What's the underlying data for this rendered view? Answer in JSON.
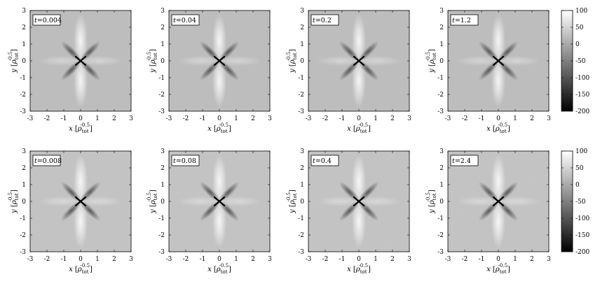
{
  "chart_data": [
    {
      "type": "heatmap",
      "label": "t=0.004",
      "t_symbol": "t",
      "t_value": "=0.004",
      "noise": false,
      "xlim": [
        -3,
        3
      ],
      "ylim": [
        -3,
        3
      ],
      "x_ticks": [
        "-3",
        "-2",
        "-1",
        "0",
        "1",
        "2",
        "3"
      ],
      "y_ticks": [
        "3",
        "2",
        "1",
        "0",
        "-1",
        "-2",
        "-3"
      ],
      "xlabel": {
        "var": "x",
        "unit": "ρ",
        "sub": "tot",
        "sup": "-0.5"
      },
      "ylabel": {
        "var": "y",
        "unit": "ρ",
        "sub": "tot",
        "sup": "-0.5"
      }
    },
    {
      "type": "heatmap",
      "label": "t=0.04",
      "t_symbol": "t",
      "t_value": "=0.04",
      "noise": false,
      "xlim": [
        -3,
        3
      ],
      "ylim": [
        -3,
        3
      ],
      "x_ticks": [
        "-3",
        "-2",
        "-1",
        "0",
        "1",
        "2",
        "3"
      ],
      "y_ticks": [
        "3",
        "2",
        "1",
        "0",
        "-1",
        "-2",
        "-3"
      ],
      "xlabel": {
        "var": "x",
        "unit": "ρ",
        "sub": "tot",
        "sup": "-0.5"
      },
      "ylabel": {
        "var": "y",
        "unit": "ρ",
        "sub": "tot",
        "sup": "-0.5"
      }
    },
    {
      "type": "heatmap",
      "label": "t=0.2",
      "t_symbol": "t",
      "t_value": "=0.2",
      "noise": false,
      "xlim": [
        -3,
        3
      ],
      "ylim": [
        -3,
        3
      ],
      "x_ticks": [
        "-3",
        "-2",
        "-1",
        "0",
        "1",
        "2",
        "3"
      ],
      "y_ticks": [
        "3",
        "2",
        "1",
        "0",
        "-1",
        "-2",
        "-3"
      ],
      "xlabel": {
        "var": "x",
        "unit": "ρ",
        "sub": "tot",
        "sup": "-0.5"
      },
      "ylabel": {
        "var": "y",
        "unit": "ρ",
        "sub": "tot",
        "sup": "-0.5"
      }
    },
    {
      "type": "heatmap",
      "label": "t=1.2",
      "t_symbol": "t",
      "t_value": "=1.2",
      "noise": false,
      "xlim": [
        -3,
        3
      ],
      "ylim": [
        -3,
        3
      ],
      "x_ticks": [
        "-3",
        "-2",
        "-1",
        "0",
        "1",
        "2",
        "3"
      ],
      "y_ticks": [
        "3",
        "2",
        "1",
        "0",
        "-1",
        "-2",
        "-3"
      ],
      "xlabel": {
        "var": "x",
        "unit": "ρ",
        "sub": "tot",
        "sup": "-0.5"
      },
      "ylabel": {
        "var": "y",
        "unit": "ρ",
        "sub": "tot",
        "sup": "-0.5"
      }
    },
    {
      "type": "heatmap",
      "label": "t=0.008",
      "t_symbol": "t",
      "t_value": "=0.008",
      "noise": true,
      "xlim": [
        -3,
        3
      ],
      "ylim": [
        -3,
        3
      ],
      "x_ticks": [
        "-3",
        "-2",
        "-1",
        "0",
        "1",
        "2",
        "3"
      ],
      "y_ticks": [
        "3",
        "2",
        "1",
        "0",
        "-1",
        "-2",
        "-3"
      ],
      "xlabel": {
        "var": "x",
        "unit": "ρ",
        "sub": "tot",
        "sup": "-0.5"
      },
      "ylabel": {
        "var": "y",
        "unit": "ρ",
        "sub": "tot",
        "sup": "-0.5"
      }
    },
    {
      "type": "heatmap",
      "label": "t=0.08",
      "t_symbol": "t",
      "t_value": "=0.08",
      "noise": true,
      "xlim": [
        -3,
        3
      ],
      "ylim": [
        -3,
        3
      ],
      "x_ticks": [
        "-3",
        "-2",
        "-1",
        "0",
        "1",
        "2",
        "3"
      ],
      "y_ticks": [
        "3",
        "2",
        "1",
        "0",
        "-1",
        "-2",
        "-3"
      ],
      "xlabel": {
        "var": "x",
        "unit": "ρ",
        "sub": "tot",
        "sup": "-0.5"
      },
      "ylabel": {
        "var": "y",
        "unit": "ρ",
        "sub": "tot",
        "sup": "-0.5"
      }
    },
    {
      "type": "heatmap",
      "label": "t=0.4",
      "t_symbol": "t",
      "t_value": "=0.4",
      "noise": true,
      "xlim": [
        -3,
        3
      ],
      "ylim": [
        -3,
        3
      ],
      "x_ticks": [
        "-3",
        "-2",
        "-1",
        "0",
        "1",
        "2",
        "3"
      ],
      "y_ticks": [
        "3",
        "2",
        "1",
        "0",
        "-1",
        "-2",
        "-3"
      ],
      "xlabel": {
        "var": "x",
        "unit": "ρ",
        "sub": "tot",
        "sup": "-0.5"
      },
      "ylabel": {
        "var": "y",
        "unit": "ρ",
        "sub": "tot",
        "sup": "-0.5"
      }
    },
    {
      "type": "heatmap",
      "label": "t=2.4",
      "t_symbol": "t",
      "t_value": "=2.4",
      "noise": true,
      "xlim": [
        -3,
        3
      ],
      "ylim": [
        -3,
        3
      ],
      "x_ticks": [
        "-3",
        "-2",
        "-1",
        "0",
        "1",
        "2",
        "3"
      ],
      "y_ticks": [
        "3",
        "2",
        "1",
        "0",
        "-1",
        "-2",
        "-3"
      ],
      "xlabel": {
        "var": "x",
        "unit": "ρ",
        "sub": "tot",
        "sup": "-0.5"
      },
      "ylabel": {
        "var": "y",
        "unit": "ρ",
        "sub": "tot",
        "sup": "-0.5"
      }
    }
  ],
  "colorbar": {
    "range": [
      -200,
      100
    ],
    "ticks": [
      "100",
      "50",
      "0",
      "-50",
      "-100",
      "-150",
      "-200"
    ],
    "colors": {
      "low": "#000000",
      "high": "#ffffff"
    }
  }
}
